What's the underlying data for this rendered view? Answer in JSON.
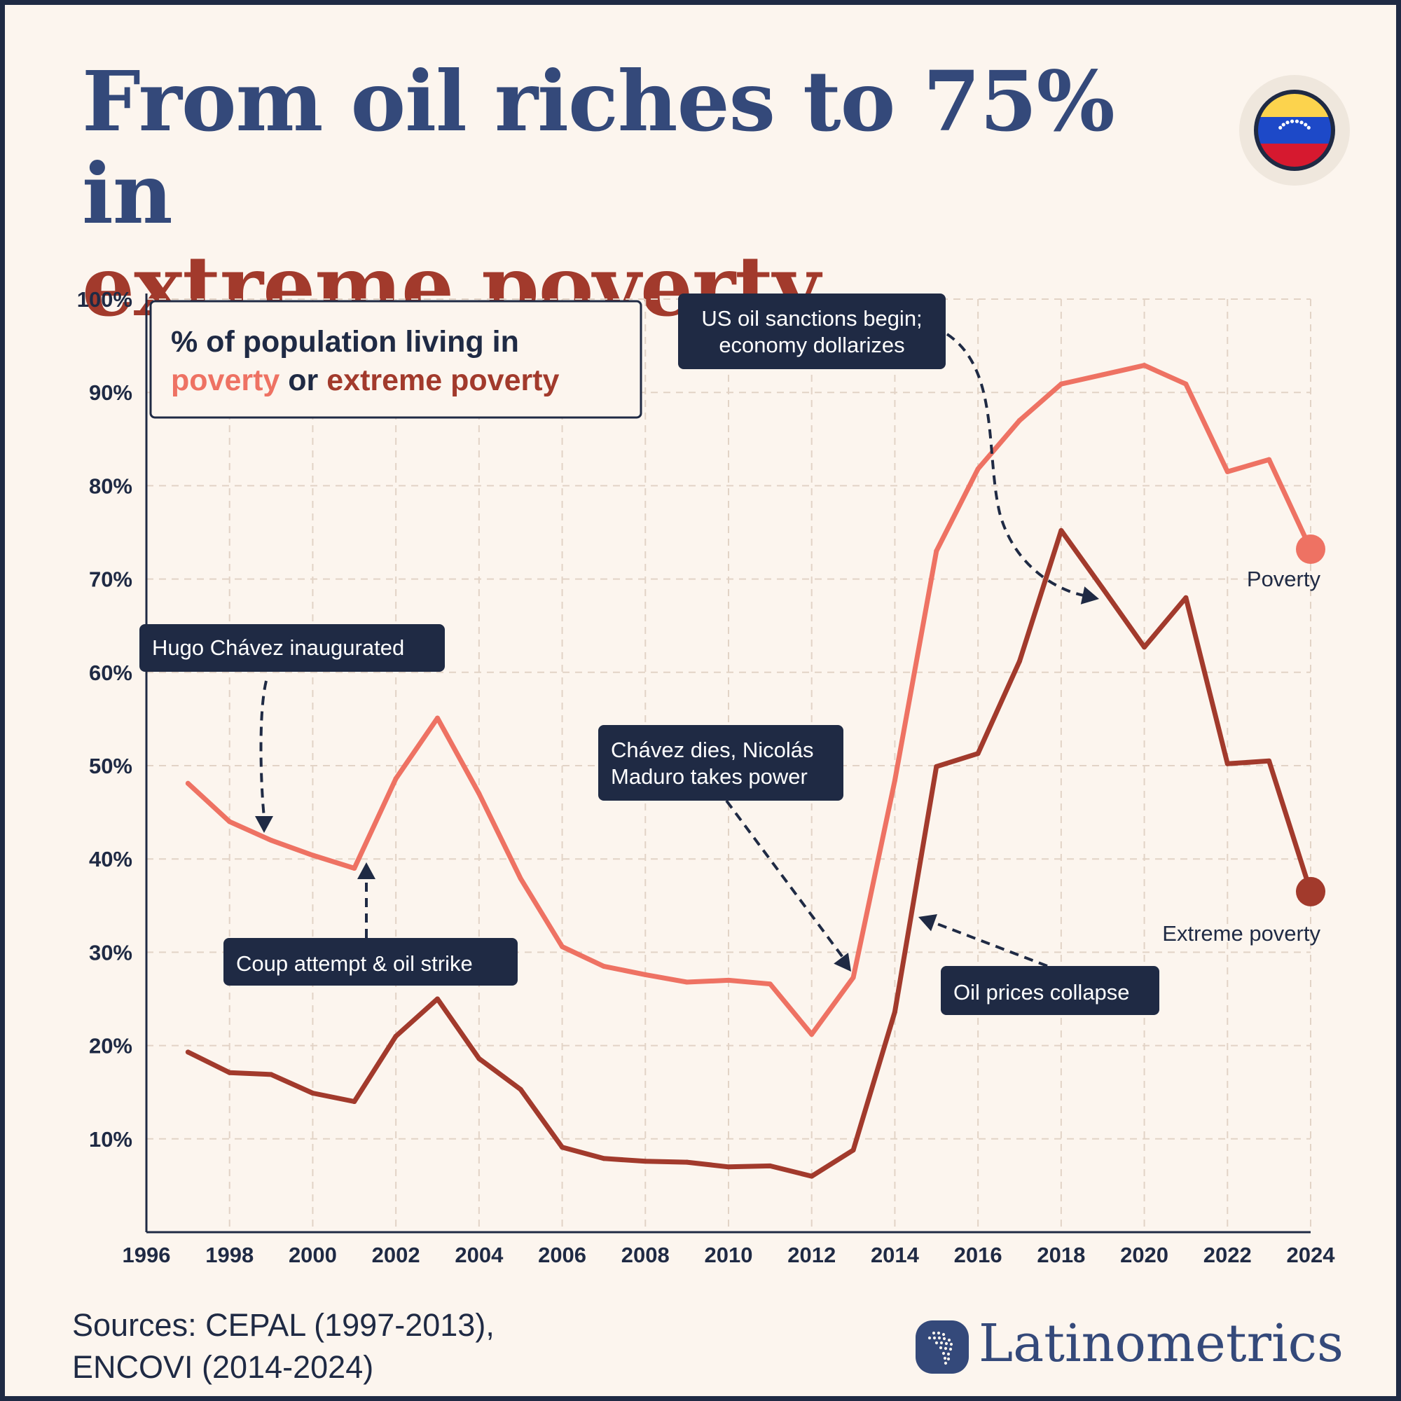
{
  "title": {
    "line1": "From oil riches to 75% in",
    "line2": "extreme poverty"
  },
  "legend": {
    "line1": "% of population living in",
    "poverty_word": "poverty",
    "or_word": " or ",
    "extreme_word": "extreme poverty"
  },
  "colors": {
    "background": "#fcf5ee",
    "poverty": "#ee7263",
    "extreme_poverty": "#a23a2c",
    "title_blue": "#34497a",
    "dark": "#1f2a44"
  },
  "flag_icon": "venezuela-flag-icon",
  "sources": {
    "line1": "Sources: CEPAL (1997-2013),",
    "line2": "ENCOVI (2014-2024)"
  },
  "brand": {
    "name": "Latinometrics",
    "logo_icon": "latin-america-map-icon"
  },
  "chart_data": {
    "type": "line",
    "xlim": [
      1996,
      2024
    ],
    "ylim": [
      0,
      100
    ],
    "x_ticks": [
      1996,
      1998,
      2000,
      2002,
      2004,
      2006,
      2008,
      2010,
      2012,
      2014,
      2016,
      2018,
      2020,
      2022,
      2024
    ],
    "y_ticks": [
      10,
      20,
      30,
      40,
      50,
      60,
      70,
      80,
      90,
      100
    ],
    "y_tick_labels": [
      "10%",
      "20%",
      "30%",
      "40%",
      "50%",
      "60%",
      "70%",
      "80%",
      "90%",
      "100%"
    ],
    "grid": true,
    "x": [
      1997,
      1998,
      1999,
      2000,
      2001,
      2002,
      2003,
      2004,
      2005,
      2006,
      2007,
      2008,
      2009,
      2010,
      2011,
      2012,
      2013,
      2014,
      2015,
      2016,
      2017,
      2018,
      2019,
      2020,
      2021,
      2022,
      2023,
      2024
    ],
    "series": [
      {
        "name": "Poverty",
        "color": "#ee7263",
        "values": [
          48.1,
          44.0,
          42.0,
          40.4,
          39.0,
          48.6,
          55.1,
          47.0,
          37.9,
          30.6,
          28.5,
          27.6,
          26.8,
          27.0,
          26.6,
          21.2,
          27.3,
          48.4,
          73.0,
          81.8,
          87.0,
          90.9,
          91.9,
          92.9,
          90.9,
          81.5,
          82.8,
          73.2
        ]
      },
      {
        "name": "Extreme poverty",
        "color": "#a23a2c",
        "values": [
          19.3,
          17.1,
          16.9,
          14.9,
          14.0,
          21.0,
          25.0,
          18.6,
          15.3,
          9.1,
          7.9,
          7.6,
          7.5,
          7.0,
          7.1,
          6.0,
          8.8,
          23.6,
          49.9,
          51.3,
          61.2,
          75.2,
          69.0,
          62.7,
          68.0,
          50.2,
          50.5,
          36.5
        ]
      }
    ],
    "annotations": [
      {
        "text": [
          "Hugo Chávez inaugurated"
        ]
      },
      {
        "text": [
          "Coup attempt & oil strike"
        ]
      },
      {
        "text": [
          "Chávez dies, Nicolás",
          "Maduro takes power"
        ]
      },
      {
        "text": [
          "US oil sanctions begin;",
          "economy dollarizes"
        ]
      },
      {
        "text": [
          "Oil prices collapse"
        ]
      }
    ]
  }
}
